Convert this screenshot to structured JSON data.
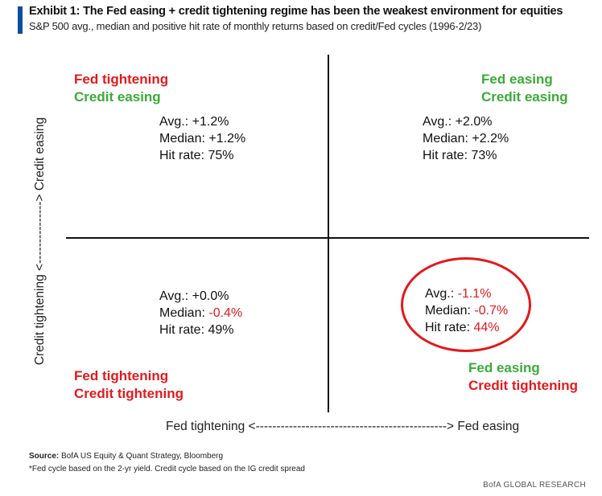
{
  "header": {
    "title": "Exhibit 1: The Fed easing + credit tightening regime has been the weakest environment for equities",
    "subtitle": "S&P 500 avg., median and positive hit rate of monthly returns based on credit/Fed cycles (1996-2/23)"
  },
  "chart_data": {
    "type": "table",
    "title": "Exhibit 1: The Fed easing + credit tightening regime has been the weakest environment for equities",
    "xlabel": "Fed tightening <----------------------------------------------> Fed easing",
    "ylabel": "Credit tightening <---------------> Credit easing",
    "quadrants": [
      {
        "id": "top-left",
        "fed": "Fed tightening",
        "credit": "Credit easing",
        "avg_label": "Avg.:",
        "avg": "+1.2%",
        "median_label": "Median:",
        "median": "+1.2%",
        "hit_label": "Hit rate:",
        "hit": "75%"
      },
      {
        "id": "top-right",
        "fed": "Fed easing",
        "credit": "Credit easing",
        "avg_label": "Avg.:",
        "avg": "+2.0%",
        "median_label": "Median:",
        "median": "+2.2%",
        "hit_label": "Hit rate:",
        "hit": "73%"
      },
      {
        "id": "bottom-left",
        "fed": "Fed tightening",
        "credit": "Credit tightening",
        "avg_label": "Avg.:",
        "avg": "+0.0%",
        "median_label": "Median:",
        "median": "-0.4%",
        "hit_label": "Hit rate:",
        "hit": "49%"
      },
      {
        "id": "bottom-right",
        "fed": "Fed easing",
        "credit": "Credit tightening",
        "avg_label": "Avg.:",
        "avg": "-1.1%",
        "median_label": "Median:",
        "median": "-0.7%",
        "hit_label": "Hit rate:",
        "hit": "44%"
      }
    ],
    "highlighted_quadrant": "bottom-right"
  },
  "footer": {
    "source_label": "Source:",
    "source_text": "BofA US Equity & Quant Strategy, Bloomberg",
    "footnote": "*Fed cycle based on the 2-yr yield. Credit cycle based on the IG credit spread",
    "brand": "BofA GLOBAL RESEARCH"
  },
  "colors": {
    "tightening": "#e3191c",
    "easing": "#3aab38",
    "accent": "#0b4ea2"
  }
}
